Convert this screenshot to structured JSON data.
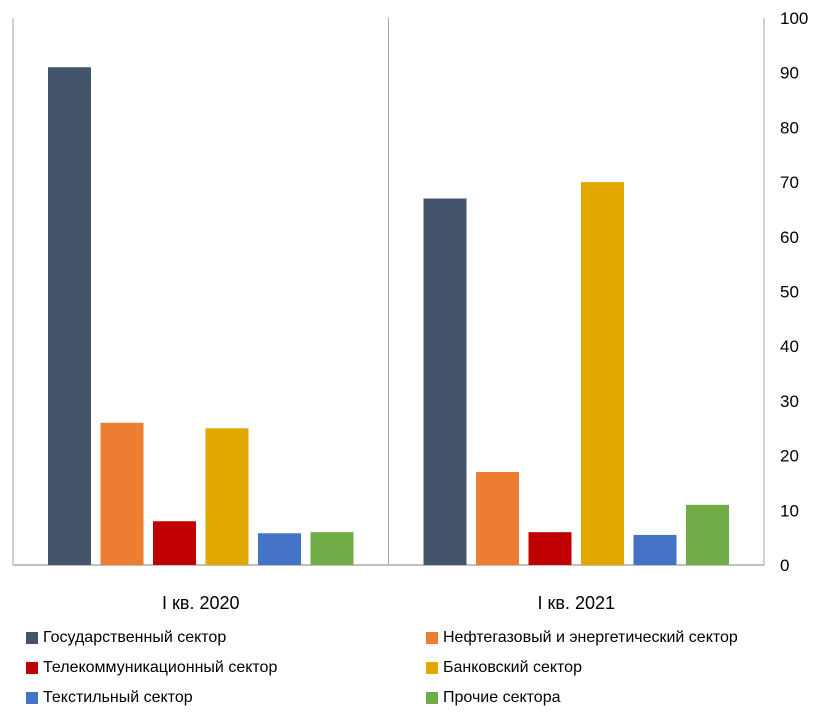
{
  "chart_data": {
    "type": "bar",
    "categories": [
      "I кв. 2020",
      "I кв. 2021"
    ],
    "series": [
      {
        "name": "Государственный сектор",
        "color": "#44546A",
        "values": [
          91,
          67
        ]
      },
      {
        "name": "Нефтегазовый и энергетический сектор",
        "color": "#ED7D31",
        "values": [
          26,
          17
        ]
      },
      {
        "name": "Телекоммуникационный сектор",
        "color": "#C00000",
        "values": [
          8,
          6
        ]
      },
      {
        "name": "Банковский сектор",
        "color": "#E2A800",
        "values": [
          25,
          70
        ]
      },
      {
        "name": "Текстильный сектор",
        "color": "#4472C4",
        "values": [
          5.8,
          5.5
        ]
      },
      {
        "name": "Прочие сектора",
        "color": "#70AD47",
        "values": [
          6,
          11
        ]
      }
    ],
    "yticks": [
      0,
      10,
      20,
      30,
      40,
      50,
      60,
      70,
      80,
      90,
      100
    ],
    "ylim": [
      0,
      100
    ],
    "y_axis_side": "right",
    "grid": false,
    "legend_position": "bottom"
  }
}
